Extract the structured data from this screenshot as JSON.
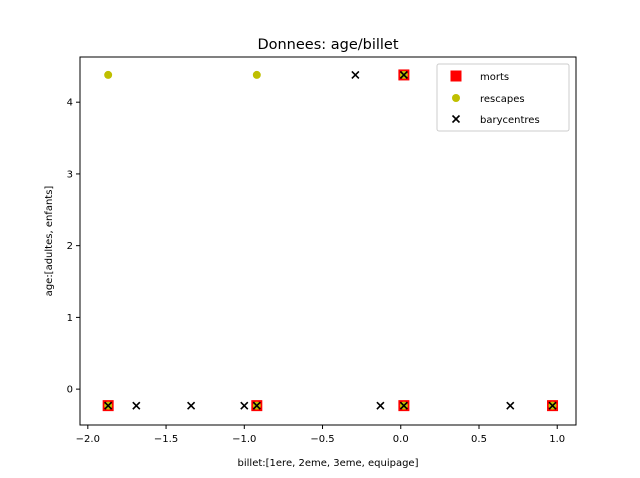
{
  "chart_data": {
    "type": "scatter",
    "title": "Donnees: age/billet",
    "xlabel": "billet:[1ere, 2eme, 3eme, equipage]",
    "ylabel": "age:[adultes, enfants]",
    "xlim": [
      -2.05,
      1.12
    ],
    "ylim": [
      -0.5,
      4.63
    ],
    "xticks": [
      -2.0,
      -1.5,
      -1.0,
      -0.5,
      0.0,
      0.5,
      1.0
    ],
    "xtick_labels": [
      "−2.0",
      "−1.5",
      "−1.0",
      "−0.5",
      "0.0",
      "0.5",
      "1.0"
    ],
    "yticks": [
      0,
      1,
      2,
      3,
      4
    ],
    "ytick_labels": [
      "0",
      "1",
      "2",
      "3",
      "4"
    ],
    "grid": false,
    "legend_position": "top-right",
    "series": [
      {
        "name": "morts",
        "marker": "square",
        "color": "#ff0000",
        "points": [
          {
            "x": -1.87,
            "y": -0.23
          },
          {
            "x": -0.92,
            "y": -0.23
          },
          {
            "x": 0.02,
            "y": -0.23
          },
          {
            "x": 0.97,
            "y": -0.23
          },
          {
            "x": 0.02,
            "y": 4.38
          }
        ]
      },
      {
        "name": "rescapes",
        "marker": "circle",
        "color": "#bfbf00",
        "points": [
          {
            "x": -1.87,
            "y": -0.23
          },
          {
            "x": -0.92,
            "y": -0.23
          },
          {
            "x": 0.02,
            "y": -0.23
          },
          {
            "x": 0.97,
            "y": -0.23
          },
          {
            "x": -1.87,
            "y": 4.38
          },
          {
            "x": -0.92,
            "y": 4.38
          },
          {
            "x": 0.02,
            "y": 4.38
          }
        ]
      },
      {
        "name": "barycentres",
        "marker": "x",
        "color": "#000000",
        "points": [
          {
            "x": -1.87,
            "y": -0.23
          },
          {
            "x": -1.69,
            "y": -0.23
          },
          {
            "x": -1.34,
            "y": -0.23
          },
          {
            "x": -1.0,
            "y": -0.23
          },
          {
            "x": -0.92,
            "y": -0.23
          },
          {
            "x": -0.13,
            "y": -0.23
          },
          {
            "x": 0.02,
            "y": -0.23
          },
          {
            "x": 0.7,
            "y": -0.23
          },
          {
            "x": 0.97,
            "y": -0.23
          },
          {
            "x": -0.29,
            "y": 4.38
          },
          {
            "x": 0.02,
            "y": 4.38
          }
        ]
      }
    ]
  }
}
